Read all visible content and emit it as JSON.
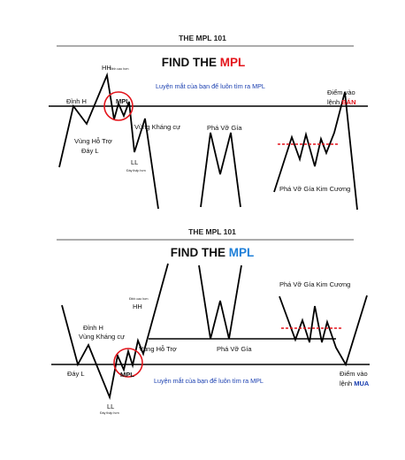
{
  "colors": {
    "line": "#000000",
    "red": "#e3141b",
    "blue": "#1a3fb0",
    "bluemark": "#1e7fd8",
    "dash": "#e3141b"
  },
  "top": {
    "header": "THE MPL 101",
    "title_prefix": "FIND THE ",
    "title_accent": "MPL",
    "hh": "HH",
    "hh_sub": "Đỉnh cao hơn",
    "dinh_h": "Đỉnh H",
    "mpl": "MPL",
    "note": "Luyện mắt của bạn để luôn tìm ra MPL",
    "vung_ho_tro": "Vùng Hỗ Trợ",
    "day_l": "Đáy L",
    "vung_khang_cu": "Vùng Kháng cự",
    "ll": "LL",
    "ll_sub": "Đáy thấp hơn",
    "pha_vo_gia": "Phá Vỡ Gía",
    "diem_vao": "Điểm vào",
    "lenh": "lệnh ",
    "ban": "BÁN",
    "pha_vo_kim_cuong": "Phá Vỡ Gía Kim Cương"
  },
  "bottom": {
    "header": "THE MPL 101",
    "title_prefix": "FIND THE ",
    "title_accent": "MPL",
    "hh_sub": "Đỉnh cao hơn",
    "hh": "HH",
    "dinh_h": "Đỉnh H",
    "vung_khang_cu": "Vùng Kháng cự",
    "vung_ho_tro": "Vùng Hỗ Trợ",
    "pha_vo_gia": "Phá Vỡ Gía",
    "pha_vo_kim_cuong": "Phá Vỡ Gía Kim Cương",
    "day_l": "Đáy L",
    "mpl": "MPL",
    "note": "Luyện mắt của bạn để luôn tìm ra MPL",
    "ll": "LL",
    "ll_sub": "Đáy thấp hơn",
    "diem_vao": "Điểm vào",
    "lenh": "lệnh ",
    "mua": "MUA"
  }
}
